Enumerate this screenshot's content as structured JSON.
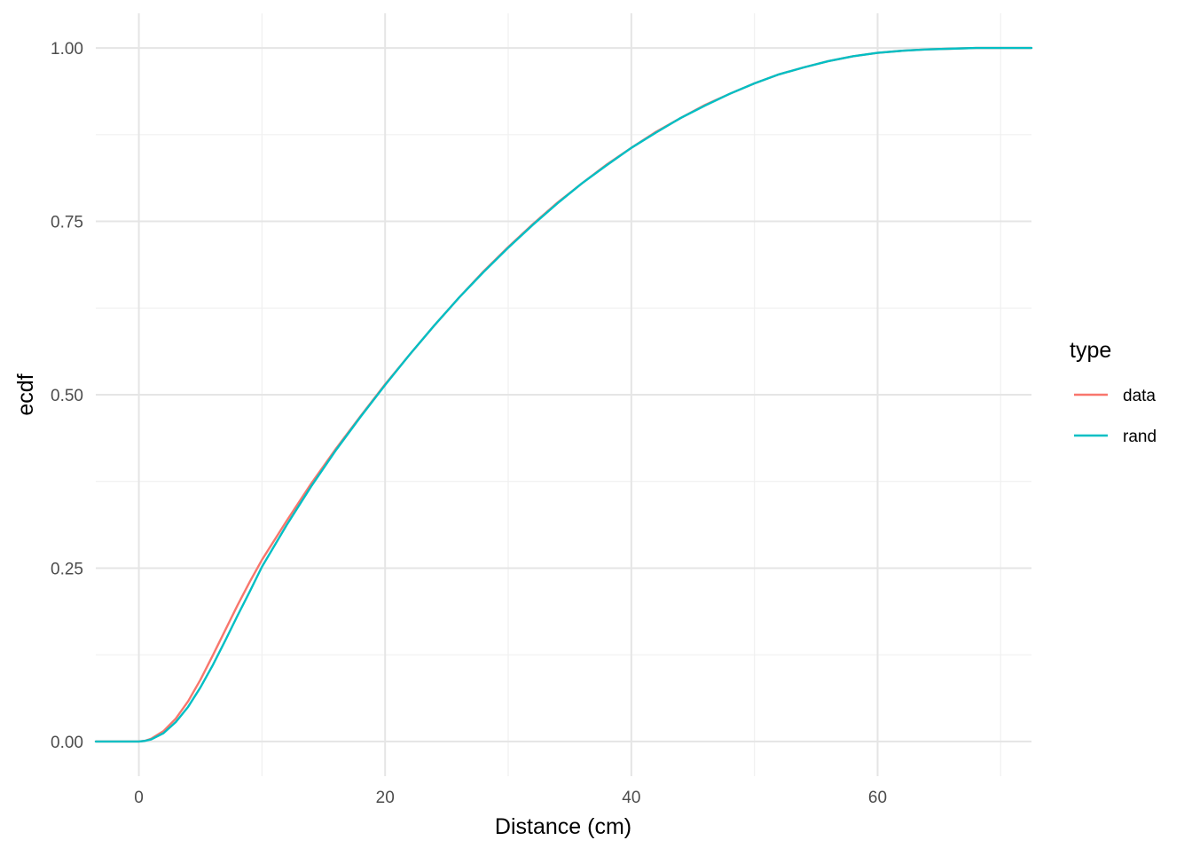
{
  "chart_data": {
    "type": "line",
    "title": "",
    "xlabel": "Distance (cm)",
    "ylabel": "ecdf",
    "xlim": [
      -3.5,
      72.5
    ],
    "ylim": [
      -0.05,
      1.05
    ],
    "x_ticks": [
      0,
      20,
      40,
      60
    ],
    "x_tick_labels": [
      "0",
      "20",
      "40",
      "60"
    ],
    "x_minor_ticks": [
      10,
      30,
      50,
      70
    ],
    "y_ticks": [
      0,
      0.25,
      0.5,
      0.75,
      1.0
    ],
    "y_tick_labels": [
      "0.00",
      "0.25",
      "0.50",
      "0.75",
      "1.00"
    ],
    "y_minor_ticks": [
      0.125,
      0.375,
      0.625,
      0.875
    ],
    "grid": true,
    "legend": {
      "title": "type",
      "position": "right",
      "entries": [
        "data",
        "rand"
      ]
    },
    "x": [
      -3.5,
      0,
      0.5,
      1,
      2,
      3,
      4,
      5,
      6,
      7,
      8,
      9,
      10,
      12,
      14,
      16,
      18,
      20,
      22,
      24,
      26,
      28,
      30,
      32,
      34,
      36,
      38,
      40,
      42,
      44,
      46,
      48,
      50,
      52,
      54,
      56,
      58,
      60,
      62,
      64,
      66,
      68,
      70,
      72.5
    ],
    "series": [
      {
        "name": "data",
        "color": "#F8766D",
        "values": [
          0,
          0,
          0.001,
          0.004,
          0.015,
          0.033,
          0.058,
          0.089,
          0.124,
          0.16,
          0.196,
          0.23,
          0.262,
          0.318,
          0.372,
          0.422,
          0.469,
          0.515,
          0.558,
          0.6,
          0.64,
          0.678,
          0.713,
          0.746,
          0.777,
          0.805,
          0.832,
          0.856,
          0.879,
          0.899,
          0.918,
          0.934,
          0.949,
          0.962,
          0.972,
          0.981,
          0.988,
          0.993,
          0.996,
          0.998,
          0.999,
          1.0,
          1.0,
          1.0
        ]
      },
      {
        "name": "rand",
        "color": "#00BFC4",
        "values": [
          0,
          0,
          0.001,
          0.003,
          0.012,
          0.028,
          0.05,
          0.078,
          0.11,
          0.145,
          0.181,
          0.216,
          0.252,
          0.312,
          0.368,
          0.42,
          0.468,
          0.514,
          0.558,
          0.6,
          0.64,
          0.677,
          0.712,
          0.745,
          0.776,
          0.805,
          0.831,
          0.856,
          0.878,
          0.899,
          0.917,
          0.934,
          0.949,
          0.962,
          0.972,
          0.981,
          0.988,
          0.993,
          0.996,
          0.998,
          0.999,
          1.0,
          1.0,
          1.0
        ]
      }
    ]
  }
}
